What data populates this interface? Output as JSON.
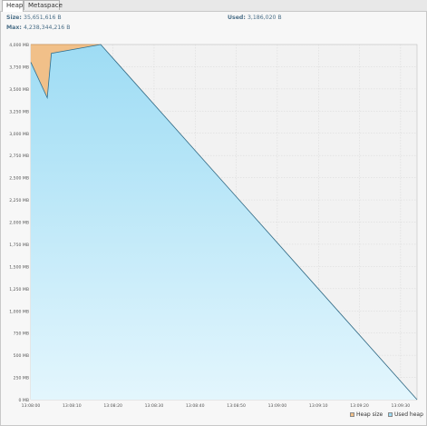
{
  "tabs": [
    {
      "label": "Heap",
      "active": true
    },
    {
      "label": "Metaspace",
      "active": false
    }
  ],
  "stats": {
    "size_label": "Size:",
    "size_value": "35,651,616 B",
    "used_label": "Used:",
    "used_value": "3,186,020 B",
    "max_label": "Max:",
    "max_value": "4,238,344,216 B"
  },
  "colors": {
    "heap_size": "#f1c089",
    "used_heap": "#9edcf4",
    "used_heap_light": "#e3f6fd",
    "used_line": "#2f6e8f",
    "grid": "#d6d6d6"
  },
  "chart_data": {
    "type": "area",
    "title": "",
    "xlabel": "",
    "ylabel": "",
    "ylim": [
      0,
      4000
    ],
    "y_unit": "MB",
    "y_tick_labels": [
      "0 MB",
      "250 MB",
      "500 MB",
      "750 MB",
      "1,000 MB",
      "1,250 MB",
      "1,500 MB",
      "1,750 MB",
      "2,000 MB",
      "2,250 MB",
      "2,500 MB",
      "2,750 MB",
      "3,000 MB",
      "3,250 MB",
      "3,500 MB",
      "3,750 MB",
      "4,000 MB"
    ],
    "x_tick_labels": [
      "13:08:00",
      "13:08:10",
      "13:08:20",
      "13:08:30",
      "13:08:40",
      "13:08:50",
      "13:09:00",
      "13:09:10",
      "13:09:20",
      "13:09:30"
    ],
    "x_range": [
      0,
      94
    ],
    "series": [
      {
        "name": "Heap size",
        "x": [
          0,
          4,
          17,
          94
        ],
        "y": [
          4000,
          4000,
          4000,
          0
        ]
      },
      {
        "name": "Used heap",
        "x": [
          0,
          4,
          5,
          17,
          94
        ],
        "y": [
          3800,
          3400,
          3900,
          4000,
          0
        ]
      }
    ],
    "grid": true,
    "legend_position": "bottom-right"
  }
}
